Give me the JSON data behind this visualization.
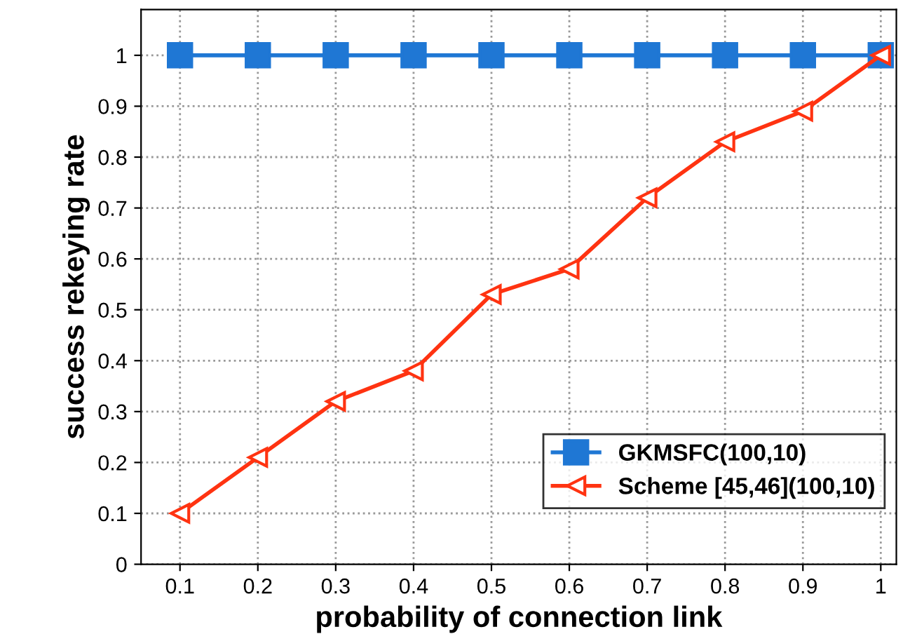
{
  "chart_data": {
    "type": "line",
    "xlabel": "probability of connection link",
    "ylabel": "success rekeying rate",
    "x": [
      0.1,
      0.2,
      0.3,
      0.4,
      0.5,
      0.6,
      0.7,
      0.8,
      0.9,
      1
    ],
    "series": [
      {
        "name": "GKMSFC(100,10)",
        "color": "#1f77d4",
        "marker": "square",
        "values": [
          1,
          1,
          1,
          1,
          1,
          1,
          1,
          1,
          1,
          1
        ]
      },
      {
        "name": "Scheme [45,46](100,10)",
        "color": "#ff3311",
        "marker": "triangle",
        "values": [
          0.1,
          0.21,
          0.32,
          0.38,
          0.53,
          0.58,
          0.72,
          0.83,
          0.89,
          1.0
        ]
      }
    ],
    "xlim": [
      0.05,
      1.02
    ],
    "xticks": [
      0.1,
      0.2,
      0.3,
      0.4,
      0.5,
      0.6,
      0.7,
      0.8,
      0.9,
      1
    ],
    "ylim": [
      0,
      1.09
    ],
    "yticks": [
      0,
      0.1,
      0.2,
      0.3,
      0.4,
      0.5,
      0.6,
      0.7,
      0.8,
      0.9,
      1
    ],
    "grid": true,
    "legend": "bottom right",
    "line_style": "solid"
  }
}
